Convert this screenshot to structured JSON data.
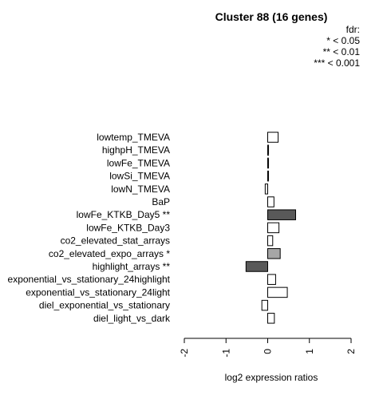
{
  "chart_data": {
    "type": "bar",
    "orientation": "horizontal",
    "title": "Cluster 88 (16 genes)",
    "xlabel": "log2 expression ratios",
    "ylabel": "",
    "xlim": [
      -2,
      2
    ],
    "xticks": [
      "-2",
      "-1",
      "0",
      "1",
      "2"
    ],
    "legend": {
      "title": "fdr:",
      "entries": [
        "* < 0.05",
        "** < 0.01",
        "*** < 0.001"
      ],
      "placement": "top-right"
    },
    "categories": [
      "lowtemp_TMEVA",
      "highpH_TMEVA",
      "lowFe_TMEVA",
      "lowSi_TMEVA",
      "lowN_TMEVA",
      "BaP",
      "lowFe_KTKB_Day5 **",
      "lowFe_KTKB_Day3",
      "co2_elevated_stat_arrays",
      "co2_elevated_expo_arrays *",
      "highlight_arrays **",
      "exponential_vs_stationary_24highlight",
      "exponential_vs_stationary_24light",
      "diel_exponential_vs_stationary",
      "diel_light_vs_dark"
    ],
    "values": [
      0.25,
      0.02,
      0.02,
      0.02,
      -0.06,
      0.15,
      0.67,
      0.27,
      0.12,
      0.3,
      -0.52,
      0.19,
      0.47,
      -0.14,
      0.16
    ],
    "significance": [
      "",
      "",
      "",
      "",
      "",
      "",
      "**",
      "",
      "",
      "*",
      "**",
      "",
      "",
      "",
      ""
    ],
    "colors": {
      "none": "#ffffff",
      "*": "#a6a6a6",
      "**": "#595959",
      "***": "#262626",
      "stroke": "#000000"
    }
  }
}
